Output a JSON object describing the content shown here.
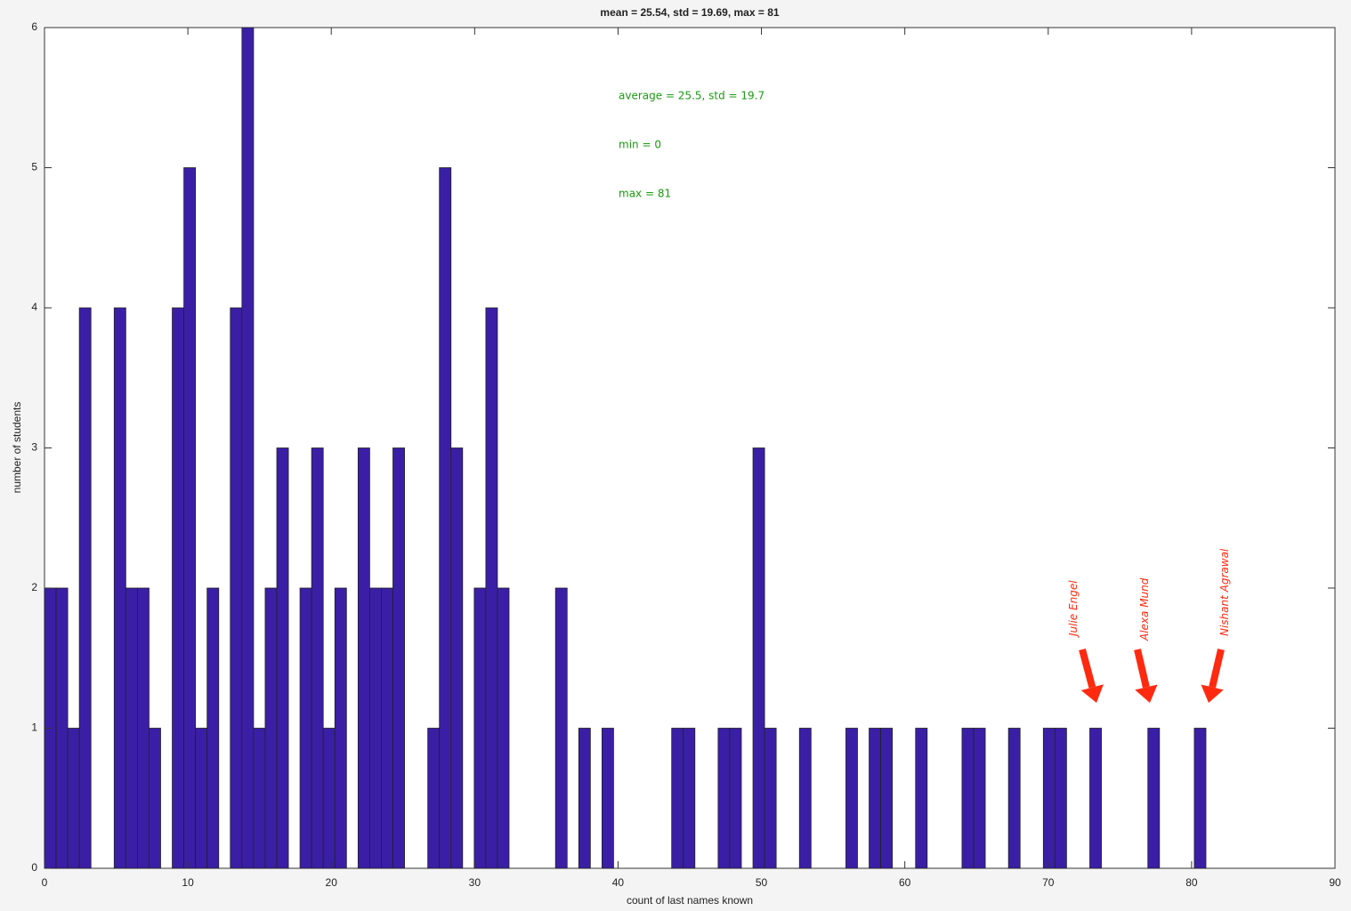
{
  "chart_data": {
    "type": "histogram",
    "title": "mean = 25.54, std = 19.69, max = 81",
    "x_label": "count of last names known",
    "y_label": "number of students",
    "bins": [
      0,
      0.81,
      1.62,
      2.43,
      3.24,
      4.05,
      4.86,
      5.67,
      6.48,
      7.29,
      8.1,
      8.91,
      9.72,
      10.53,
      11.34,
      12.15,
      12.96,
      13.77,
      14.58,
      15.39,
      16.2,
      17.01,
      17.82,
      18.63,
      19.44,
      20.25,
      21.06,
      21.87,
      22.68,
      23.49,
      24.3,
      25.11,
      25.92,
      26.73,
      27.54,
      28.35,
      29.16,
      29.97,
      30.78,
      31.59,
      32.4,
      33.21,
      34.02,
      34.83,
      35.64,
      36.45,
      37.26,
      38.07,
      38.88,
      39.69,
      40.5,
      41.31,
      42.12,
      42.93,
      43.74,
      44.55,
      45.36,
      46.17,
      46.98,
      47.79,
      48.6,
      49.41,
      50.22,
      51.03,
      51.84,
      52.65,
      53.46,
      54.27,
      55.08,
      55.89,
      56.7,
      57.51,
      58.32,
      59.13,
      59.94,
      60.75,
      61.56,
      62.37,
      63.18,
      63.99,
      64.8,
      65.61,
      66.42,
      67.23,
      68.04,
      68.85,
      69.66,
      70.47,
      71.28,
      72.09,
      72.9,
      73.71,
      74.52,
      75.33,
      76.14,
      76.95,
      77.76,
      78.57,
      79.38,
      80.19,
      81
    ],
    "values": [
      2,
      2,
      1,
      4,
      0,
      0,
      4,
      2,
      2,
      1,
      0,
      4,
      5,
      1,
      2,
      0,
      4,
      6,
      1,
      2,
      3,
      0,
      2,
      3,
      1,
      2,
      0,
      3,
      2,
      2,
      3,
      0,
      0,
      1,
      5,
      3,
      0,
      2,
      4,
      2,
      0,
      0,
      0,
      0,
      2,
      0,
      1,
      0,
      1,
      0,
      0,
      0,
      0,
      0,
      1,
      1,
      0,
      0,
      1,
      1,
      0,
      3,
      1,
      0,
      0,
      1,
      0,
      0,
      0,
      1,
      0,
      1,
      1,
      0,
      0,
      1,
      0,
      0,
      0,
      1,
      1,
      0,
      0,
      1,
      0,
      0,
      1,
      1,
      0,
      0,
      1,
      0,
      0,
      0,
      0,
      1,
      0,
      0,
      0,
      1
    ],
    "color": "#3a1fa6",
    "xlim": [
      0,
      90
    ],
    "xticks": [
      0,
      10,
      20,
      30,
      40,
      50,
      60,
      70,
      80,
      90
    ],
    "ylim": [
      0,
      6
    ],
    "yticks": [
      0,
      1,
      2,
      3,
      4,
      5,
      6
    ],
    "annotations": [
      "average = 25.5, std = 19.7",
      "min = 0",
      "max = 81"
    ],
    "annotation_color": "#1a9a10",
    "name_labels": [
      "Julie Engel",
      "Alexa Mund",
      "Nishant Agrawal"
    ],
    "name_color": "#ff2a10"
  }
}
